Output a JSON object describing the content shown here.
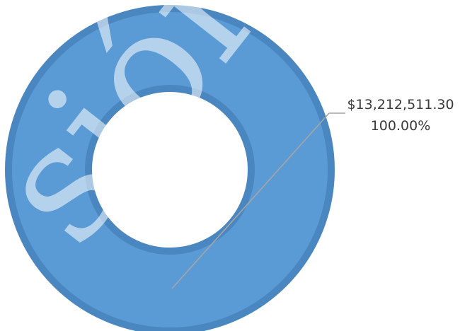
{
  "chart_data": {
    "type": "pie",
    "donut": true,
    "values": [
      13212511.3
    ],
    "colors": [
      "#5b9bd5"
    ],
    "data_labels": [
      {
        "value": "$13,212,511.30",
        "percent": "100.00%"
      }
    ],
    "title": "",
    "legend": "none"
  },
  "watermark": {
    "text": "sión"
  }
}
